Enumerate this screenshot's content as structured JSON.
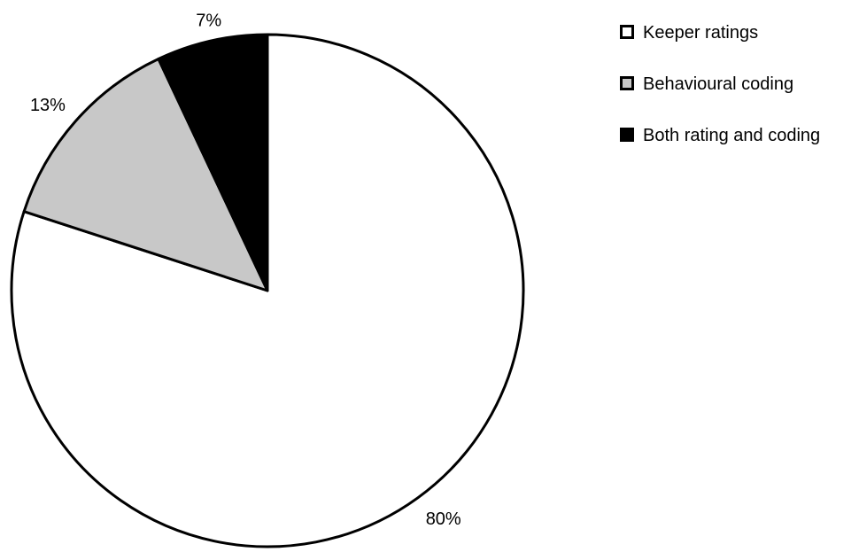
{
  "chart_data": {
    "type": "pie",
    "title": "",
    "start_angle_deg": 0,
    "direction": "clockwise",
    "legend_position": "top-right",
    "slices": [
      {
        "name": "Keeper ratings",
        "value": 80,
        "label": "80%",
        "color": "#ffffff"
      },
      {
        "name": "Behavioural coding",
        "value": 13,
        "label": "13%",
        "color": "#c8c8c8"
      },
      {
        "name": "Both rating and coding",
        "value": 7,
        "label": "7%",
        "color": "#000000"
      }
    ],
    "stroke_color": "#000000"
  }
}
